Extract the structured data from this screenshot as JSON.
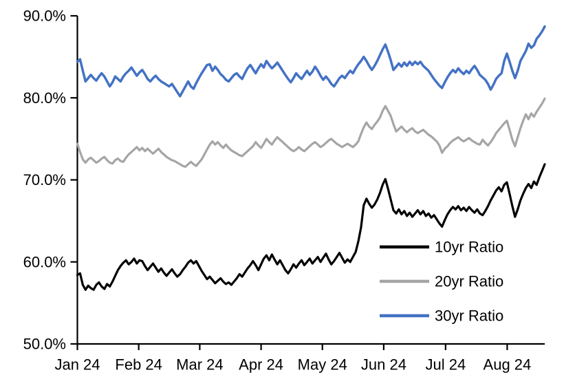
{
  "page": {
    "background": "#FFFFFF"
  },
  "chart_data": {
    "type": "line",
    "title": "",
    "subtitle": "",
    "grid": false,
    "x_axis": {
      "label": "",
      "tick_labels": [
        "Jan 24",
        "Feb 24",
        "Mar 24",
        "Apr 24",
        "May 24",
        "Jun 24",
        "Jul 24",
        "Aug 24"
      ],
      "tick_day_index": [
        0,
        22.7,
        45.3,
        68.0,
        90.7,
        113.4,
        136.3,
        159.1
      ],
      "points_per_series": 174
    },
    "y_axis": {
      "label": "",
      "unit": "%",
      "ylim": [
        50,
        90
      ],
      "tick_values": [
        90,
        80,
        70,
        60,
        50
      ],
      "tick_labels": [
        "90.0%",
        "80.0%",
        "70.0%",
        "60.0%",
        "50.0%"
      ]
    },
    "legend": {
      "position": "inside-lower-right",
      "entries": [
        {
          "label": "10yr Ratio",
          "color": "#000000"
        },
        {
          "label": "20yr Ratio",
          "color": "#A5A5A5"
        },
        {
          "label": "30yr Ratio",
          "color": "#4472C4"
        }
      ]
    },
    "series": [
      {
        "name": "10yr Ratio",
        "color": "#000000",
        "values": [
          58.4,
          58.6,
          57.2,
          56.6,
          57.1,
          56.8,
          56.6,
          57.2,
          57.5,
          57.0,
          56.7,
          57.3,
          57.0,
          57.6,
          58.3,
          59.0,
          59.5,
          59.9,
          60.2,
          59.7,
          60.0,
          60.4,
          59.8,
          60.2,
          60.1,
          59.5,
          59.0,
          59.4,
          59.8,
          59.3,
          58.8,
          59.2,
          58.7,
          58.3,
          58.7,
          59.1,
          58.6,
          58.2,
          58.5,
          59.0,
          59.4,
          59.9,
          60.2,
          59.8,
          60.1,
          59.5,
          58.9,
          58.4,
          57.9,
          58.2,
          57.8,
          57.4,
          57.7,
          58.0,
          57.6,
          57.3,
          57.5,
          57.2,
          57.6,
          58.0,
          58.5,
          58.2,
          58.7,
          59.2,
          59.6,
          60.1,
          59.6,
          59.0,
          59.7,
          60.4,
          60.8,
          60.2,
          60.9,
          60.3,
          59.7,
          60.2,
          59.6,
          59.0,
          58.6,
          59.1,
          59.7,
          59.3,
          59.8,
          60.2,
          59.6,
          60.0,
          60.4,
          59.8,
          60.2,
          60.6,
          60.0,
          60.5,
          61.0,
          60.3,
          59.7,
          60.1,
          60.6,
          61.1,
          60.5,
          59.9,
          60.3,
          60.0,
          60.6,
          61.2,
          62.5,
          64.2,
          66.9,
          67.7,
          67.1,
          66.6,
          67.0,
          67.6,
          68.4,
          69.4,
          70.1,
          68.9,
          67.6,
          66.3,
          65.9,
          66.4,
          65.8,
          66.2,
          65.6,
          66.0,
          65.5,
          65.9,
          66.3,
          65.8,
          66.2,
          65.6,
          65.9,
          65.4,
          65.7,
          65.2,
          64.7,
          64.3,
          65.1,
          65.8,
          66.3,
          66.7,
          66.4,
          66.8,
          66.3,
          66.6,
          66.2,
          66.7,
          66.3,
          66.0,
          66.4,
          65.9,
          65.7,
          66.2,
          66.8,
          67.5,
          68.1,
          68.7,
          69.1,
          68.6,
          69.4,
          69.7,
          68.3,
          66.8,
          65.5,
          66.4,
          67.5,
          68.3,
          69.0,
          69.5,
          69.0,
          69.8,
          69.4,
          70.3,
          71.1,
          71.9
        ]
      },
      {
        "name": "20yr Ratio",
        "color": "#A5A5A5",
        "values": [
          74.4,
          73.4,
          72.5,
          72.1,
          72.5,
          72.7,
          72.4,
          72.1,
          72.3,
          72.6,
          72.8,
          72.4,
          72.1,
          72.0,
          72.4,
          72.6,
          72.3,
          72.2,
          72.7,
          73.1,
          73.4,
          73.7,
          74.0,
          73.6,
          73.9,
          73.5,
          73.8,
          73.5,
          73.2,
          73.5,
          73.8,
          73.4,
          73.1,
          72.8,
          72.6,
          72.4,
          72.3,
          72.1,
          71.9,
          71.7,
          71.6,
          71.9,
          72.2,
          71.9,
          71.7,
          72.1,
          72.5,
          73.1,
          73.7,
          74.3,
          74.7,
          74.3,
          74.6,
          74.2,
          73.9,
          74.3,
          73.9,
          73.6,
          73.4,
          73.2,
          73.0,
          72.9,
          73.2,
          73.5,
          73.8,
          74.1,
          74.6,
          74.2,
          73.9,
          74.4,
          75.0,
          74.6,
          74.3,
          74.8,
          75.2,
          74.9,
          74.6,
          74.3,
          74.0,
          73.7,
          73.5,
          73.7,
          74.0,
          73.7,
          73.5,
          73.8,
          74.1,
          74.4,
          74.6,
          74.3,
          74.0,
          74.2,
          74.5,
          74.8,
          75.0,
          74.7,
          74.4,
          74.2,
          74.0,
          74.2,
          74.4,
          74.2,
          74.0,
          74.3,
          74.7,
          75.6,
          76.4,
          77.0,
          76.5,
          76.2,
          76.7,
          77.1,
          77.6,
          78.4,
          79.0,
          78.4,
          77.8,
          76.8,
          75.9,
          76.2,
          76.5,
          76.1,
          75.8,
          76.1,
          76.3,
          75.9,
          75.7,
          75.9,
          76.1,
          75.8,
          75.5,
          75.3,
          75.0,
          74.7,
          74.2,
          73.3,
          73.8,
          74.1,
          74.5,
          74.8,
          75.0,
          75.2,
          74.9,
          74.7,
          74.9,
          75.1,
          74.8,
          74.6,
          74.4,
          74.3,
          74.9,
          74.5,
          74.2,
          74.6,
          75.1,
          75.7,
          76.1,
          76.5,
          76.9,
          77.2,
          76.1,
          74.9,
          74.1,
          75.2,
          76.3,
          77.2,
          78.0,
          77.4,
          78.1,
          77.7,
          78.3,
          78.8,
          79.3,
          79.9
        ]
      },
      {
        "name": "30yr Ratio",
        "color": "#4472C4",
        "values": [
          84.4,
          84.7,
          83.3,
          82.0,
          82.4,
          82.8,
          82.4,
          82.1,
          82.6,
          83.0,
          82.6,
          82.0,
          81.4,
          81.9,
          82.6,
          82.3,
          82.0,
          82.6,
          83.0,
          83.3,
          83.7,
          83.2,
          82.7,
          83.1,
          83.4,
          82.9,
          82.3,
          82.0,
          82.4,
          82.7,
          82.3,
          82.0,
          81.8,
          81.6,
          81.4,
          81.7,
          81.2,
          80.7,
          80.2,
          80.8,
          81.4,
          82.0,
          81.4,
          81.1,
          81.8,
          82.4,
          83.0,
          83.5,
          84.0,
          84.1,
          83.3,
          83.8,
          83.4,
          82.9,
          82.6,
          82.2,
          82.0,
          82.4,
          82.8,
          83.0,
          82.6,
          82.3,
          83.0,
          83.6,
          84.0,
          83.5,
          83.0,
          83.6,
          84.1,
          83.7,
          84.5,
          84.0,
          83.6,
          83.9,
          84.3,
          83.8,
          83.3,
          82.8,
          82.3,
          81.9,
          82.4,
          83.0,
          82.6,
          82.3,
          82.8,
          83.3,
          82.8,
          83.2,
          83.8,
          83.3,
          82.7,
          82.2,
          82.6,
          82.2,
          81.7,
          81.4,
          81.9,
          82.4,
          82.7,
          82.4,
          82.9,
          83.3,
          83.0,
          83.6,
          84.1,
          84.5,
          85.0,
          84.5,
          83.9,
          83.4,
          83.9,
          84.5,
          85.2,
          85.9,
          86.5,
          85.6,
          84.6,
          83.4,
          83.8,
          84.2,
          83.8,
          84.3,
          83.9,
          84.4,
          84.0,
          84.4,
          84.1,
          84.4,
          83.9,
          83.6,
          83.3,
          82.8,
          82.3,
          81.9,
          81.5,
          81.2,
          81.9,
          82.5,
          83.0,
          83.4,
          83.1,
          83.6,
          83.2,
          82.9,
          83.3,
          83.0,
          83.5,
          83.9,
          83.4,
          82.8,
          82.5,
          82.2,
          81.7,
          81.0,
          81.6,
          82.3,
          82.7,
          83.0,
          84.5,
          85.4,
          84.4,
          83.3,
          82.4,
          83.3,
          84.5,
          85.1,
          85.7,
          86.6,
          86.1,
          86.4,
          87.2,
          87.6,
          88.1,
          88.7
        ]
      }
    ]
  }
}
